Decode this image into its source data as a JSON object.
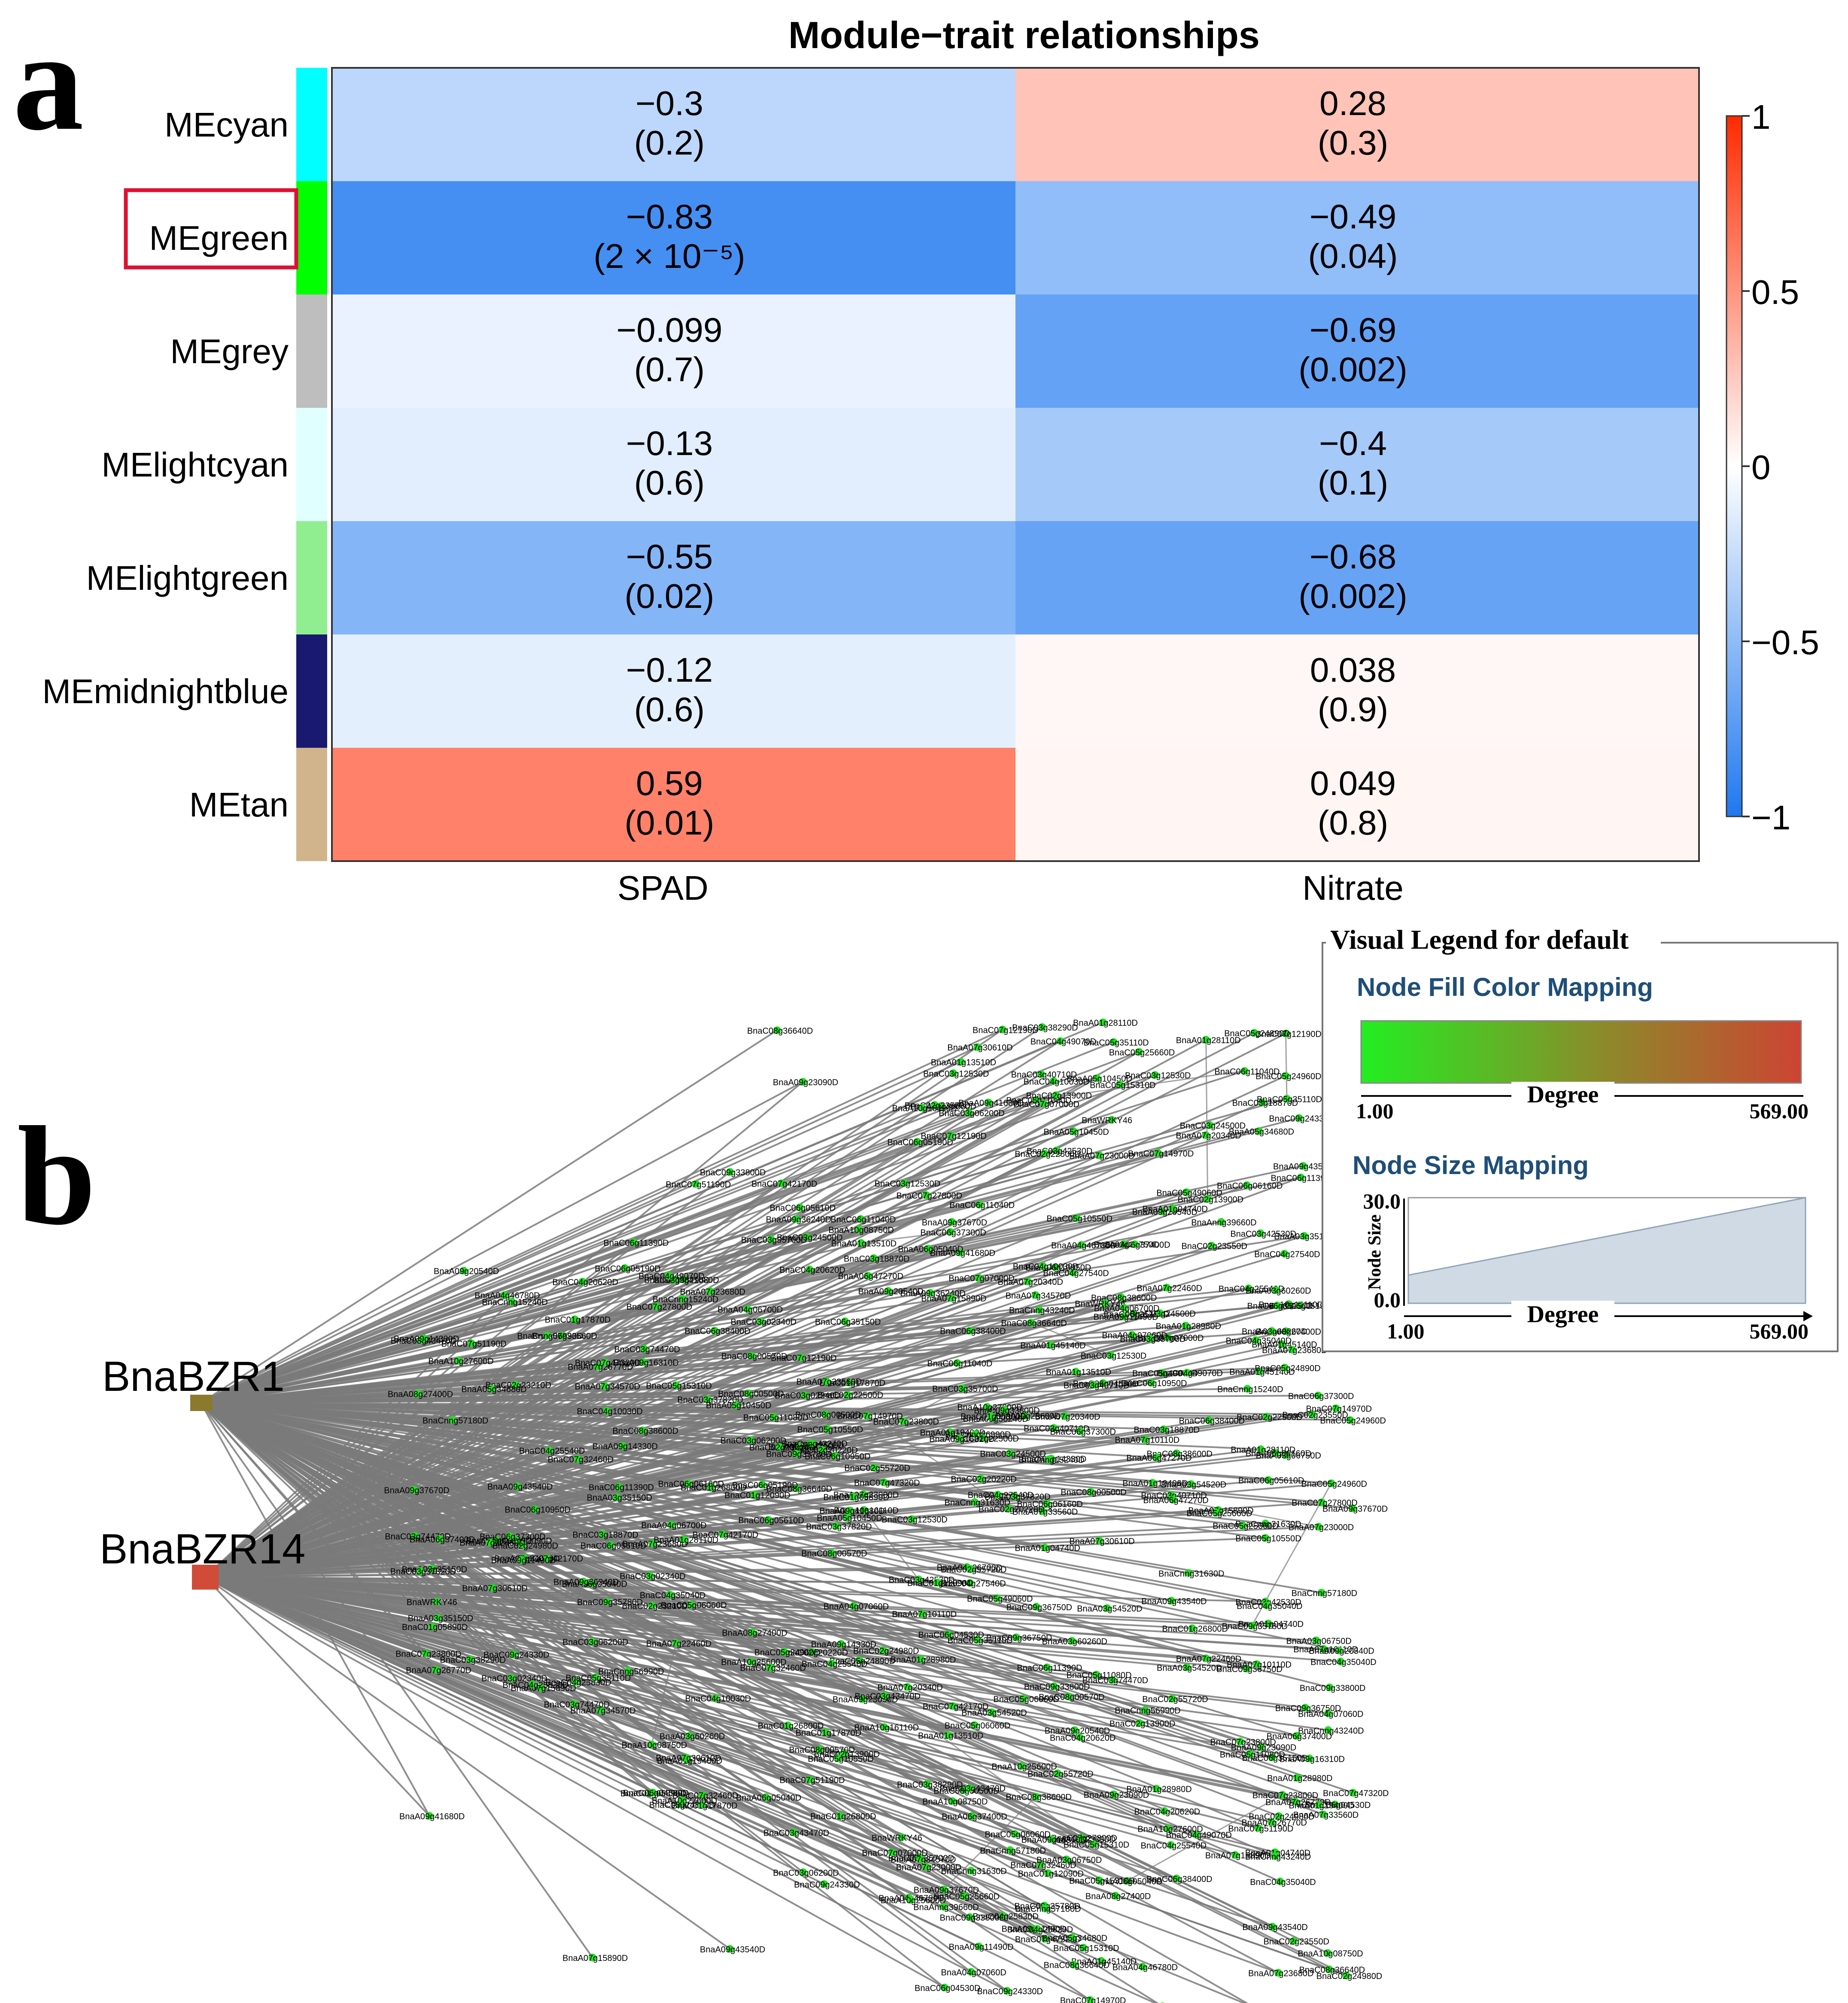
{
  "panel_labels": {
    "a": "a",
    "b": "b"
  },
  "chart_data": [
    {
      "type": "heatmap",
      "title": "Module−trait relationships",
      "columns": [
        "SPAD",
        "Nitrate"
      ],
      "highlighted_row": "MEgreen",
      "rows": [
        {
          "label": "MEcyan",
          "module_color": "#00ffff",
          "cells": [
            {
              "r": -0.3,
              "display": "−0.3",
              "p": "(0.2)"
            },
            {
              "r": 0.28,
              "display": "0.28",
              "p": "(0.3)"
            }
          ]
        },
        {
          "label": "MEgreen",
          "module_color": "#00ff00",
          "cells": [
            {
              "r": -0.83,
              "display": "−0.83",
              "p": "(2 × 10⁻⁵)"
            },
            {
              "r": -0.49,
              "display": "−0.49",
              "p": "(0.04)"
            }
          ]
        },
        {
          "label": "MEgrey",
          "module_color": "#bebebe",
          "cells": [
            {
              "r": -0.099,
              "display": "−0.099",
              "p": "(0.7)"
            },
            {
              "r": -0.69,
              "display": "−0.69",
              "p": "(0.002)"
            }
          ]
        },
        {
          "label": "MElightcyan",
          "module_color": "#e0ffff",
          "cells": [
            {
              "r": -0.13,
              "display": "−0.13",
              "p": "(0.6)"
            },
            {
              "r": -0.4,
              "display": "−0.4",
              "p": "(0.1)"
            }
          ]
        },
        {
          "label": "MElightgreen",
          "module_color": "#90ee90",
          "cells": [
            {
              "r": -0.55,
              "display": "−0.55",
              "p": "(0.02)"
            },
            {
              "r": -0.68,
              "display": "−0.68",
              "p": "(0.002)"
            }
          ]
        },
        {
          "label": "MEmidnightblue",
          "module_color": "#191970",
          "cells": [
            {
              "r": -0.12,
              "display": "−0.12",
              "p": "(0.6)"
            },
            {
              "r": 0.038,
              "display": "0.038",
              "p": "(0.9)"
            }
          ]
        },
        {
          "label": "MEtan",
          "module_color": "#d2b48c",
          "cells": [
            {
              "r": 0.59,
              "display": "0.59",
              "p": "(0.01)"
            },
            {
              "r": 0.049,
              "display": "0.049",
              "p": "(0.8)"
            }
          ]
        }
      ],
      "colorbar": {
        "range": [
          -1,
          1
        ],
        "ticks": [
          {
            "value": 1,
            "label": "1"
          },
          {
            "value": 0.5,
            "label": "0.5"
          },
          {
            "value": 0,
            "label": "0"
          },
          {
            "value": -0.5,
            "label": "−0.5"
          },
          {
            "value": -1,
            "label": "−1"
          }
        ],
        "colors": {
          "low": "#1f78f0",
          "mid": "#ffffff",
          "high": "#ff2a00"
        }
      }
    },
    {
      "type": "network",
      "hubs": [
        {
          "name": "BnaBZR1",
          "color": "#8b7a2e"
        },
        {
          "name": "BnaBZR14",
          "color": "#d04c38"
        }
      ],
      "edge_color": "#7a7a7a",
      "node_color": "#22dd22",
      "target_labels": [
        "BnaC08g36640D",
        "BnaC09g33800D",
        "BnaA09g23090D",
        "BnaC03g12530D",
        "BnaA09g20540D",
        "BnaA09g41680D",
        "BnaA07g15890D",
        "BnaA09g43540D",
        "BnaC06g04530D",
        "BnaC05g15310D",
        "BnaC04g35040D",
        "BnaC02g22500D",
        "BnaC05g49060D",
        "BnaA07g33560D",
        "BnaC06g05610D",
        "BnaC05g24960D",
        "BnaA03g06750D",
        "BnaC09g24330D",
        "BnaA01g28980D",
        "BnaC03g35700D",
        "BnaA05g10450D",
        "BnaC03g06200D",
        "BnaA07g20340D",
        "BnaC04g27540D",
        "BnaC05g11080D",
        "BnaC03g38290D",
        "BnaCnng15240D",
        "BnaC03g24500D",
        "BnaC03g40710D",
        "BnaA07g34570D",
        "BnaA03g54520D",
        "BnaA03g35150D",
        "BnaC03g37820D",
        "BnaCnng43240D",
        "BnaC03g18870D",
        "BnaA01g04740D",
        "BnaC07g23800D",
        "BnaA10g25600D",
        "BnaC02g55720D",
        "BnaC05g24890D",
        "BnaA09g37670D",
        "BnaA06g05040D",
        "BnaC01g12090D",
        "BnaC07g42170D",
        "BnaC01g26800D",
        "BnaA06g47270D",
        "BnaC03g43470D",
        "BnaC07g27800D",
        "BnaC02g23210D",
        "BnaCnng31630D",
        "BnaA07g23680D",
        "BnaC05g06060D",
        "BnaC06g06160D",
        "BnaA09g11490D",
        "BnaC03g42530D",
        "BnaC06g37300D",
        "BnaA09g14330D",
        "BnaC04g10030D",
        "BnaC08g00500D",
        "BnaC03g74470D",
        "BnaA05g34680D",
        "BnaA04g07060D",
        "BnaWRKY46",
        "BnaC07g07000D",
        "BnaA07g23000D",
        "BnaA10g27600D",
        "BnaC02g13900D",
        "BnaA01g13510D",
        "BnaC06g11390D",
        "BnaA08g27400D",
        "BnaC06g05190D",
        "BnaA10g08750D",
        "BnaA01g28110D",
        "BnaA07g30610D",
        "BnaC08g00570D",
        "BnaC05g25660D",
        "BnaC06g10950D",
        "BnaC01g17870D",
        "BnaA03g60260D",
        "BnaC06g11040D",
        "BnaC02g20220D",
        "BnaC06g38400D",
        "BnaC02g23550D",
        "BnaA09g36240D",
        "BnaC04g25540D",
        "BnaCnng57180D",
        "BnaC03g02340D",
        "BnaC07g14970D",
        "BnaA01g19400D",
        "BnaC09g35780D",
        "BnaC07g32460D",
        "BnaC05g35110D",
        "BnaAnng39660D",
        "BnaC06g35150D",
        "BnaA07g26770D",
        "BnaA01g45140D",
        "BnaA04g46780D",
        "BnaA07g22460D",
        "BnaCnng56990D",
        "BnaC05g10550D",
        "BnaC04g49070D",
        "BnaA06g37400D",
        "BnaA09g16310D",
        "BnaA10g16110D",
        "BnaC07g51190D",
        "BnaC04g25830D",
        "BnaC01g05890D",
        "BnaC02g24980D",
        "BnaC07g12190D",
        "BnaC08g38600D",
        "BnaC09g36750D",
        "BnaA04g06700D",
        "BnaA07g10110D",
        "BnaC04g20620D",
        "BnaC07g47320D"
      ]
    },
    {
      "type": "legend",
      "title": "Visual Legend for default",
      "fill": {
        "title": "Node Fill Color Mapping",
        "axis_label": "Degree",
        "min_label": "1.00",
        "max_label": "569.00",
        "colors": {
          "low": "#22ee22",
          "mid": "#8c8a2a",
          "high": "#cc4433"
        }
      },
      "size": {
        "title": "Node Size Mapping",
        "axis_label": "Degree",
        "y_label": "Node Size",
        "y_max_label": "30.0",
        "y_min_label": "0.0",
        "min_label": "1.00",
        "max_label": "569.00",
        "domain": [
          1,
          569
        ],
        "range": [
          0,
          30
        ],
        "size_at_min": 8,
        "size_at_max": 30,
        "area_color": "#d0dae4"
      },
      "title_color": "#1f4e79"
    }
  ]
}
